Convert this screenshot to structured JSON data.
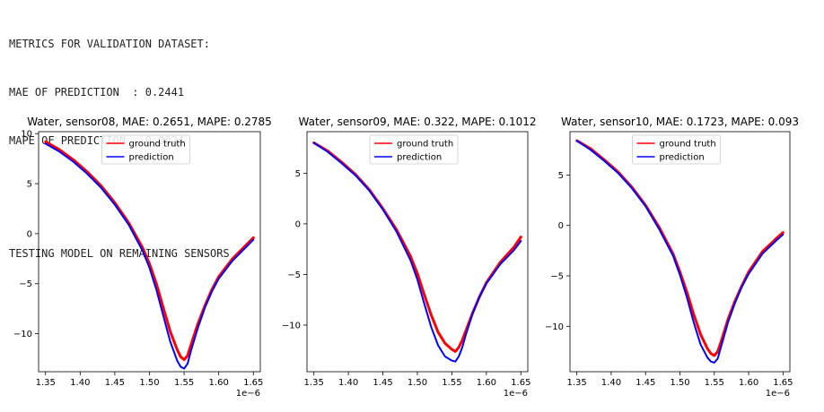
{
  "console": {
    "metrics_header": "METRICS FOR VALIDATION DATASET:",
    "mae_line": "MAE OF PREDICTION  : 0.2441",
    "mape_line": "MAPE OF PREDICTION : 0.0924",
    "testing_line": "TESTING MODEL ON REMAINING SENSORS"
  },
  "chart_data": [
    {
      "type": "line",
      "title": "Water, sensor08, MAE: 0.2651, MAPE: 0.2785",
      "xlabel": "",
      "ylabel": "",
      "x_offset_label": "1e−6",
      "xlim": [
        1.34,
        1.66
      ],
      "ylim": [
        -13.8,
        10.2
      ],
      "xticks": [
        1.35,
        1.4,
        1.45,
        1.5,
        1.55,
        1.6,
        1.65
      ],
      "xtick_labels": [
        "1.35",
        "1.40",
        "1.45",
        "1.50",
        "1.55",
        "1.60",
        "1.65"
      ],
      "yticks": [
        -10,
        -5,
        0,
        5,
        10
      ],
      "ytick_labels": [
        "−10",
        "−5",
        "0",
        "5",
        "10"
      ],
      "legend": "top-center",
      "series": [
        {
          "name": "ground truth",
          "color": "#ff0000",
          "x": [
            1.35,
            1.37,
            1.39,
            1.41,
            1.43,
            1.45,
            1.47,
            1.49,
            1.5,
            1.51,
            1.52,
            1.53,
            1.54,
            1.545,
            1.55,
            1.555,
            1.56,
            1.57,
            1.58,
            1.59,
            1.6,
            1.62,
            1.64,
            1.65
          ],
          "y": [
            9.2,
            8.4,
            7.4,
            6.2,
            4.8,
            3.1,
            1.1,
            -1.4,
            -3.0,
            -5.0,
            -7.4,
            -9.8,
            -11.6,
            -12.3,
            -12.6,
            -12.2,
            -11.1,
            -9.0,
            -7.2,
            -5.6,
            -4.3,
            -2.5,
            -1.1,
            -0.4
          ]
        },
        {
          "name": "prediction",
          "color": "#0000ff",
          "x": [
            1.35,
            1.37,
            1.39,
            1.41,
            1.43,
            1.45,
            1.47,
            1.49,
            1.5,
            1.51,
            1.52,
            1.53,
            1.54,
            1.545,
            1.55,
            1.555,
            1.56,
            1.57,
            1.58,
            1.59,
            1.6,
            1.62,
            1.64,
            1.65
          ],
          "y": [
            9.0,
            8.2,
            7.2,
            6.0,
            4.6,
            2.9,
            0.9,
            -1.7,
            -3.4,
            -5.6,
            -8.2,
            -10.8,
            -12.7,
            -13.3,
            -13.5,
            -13.0,
            -11.7,
            -9.4,
            -7.4,
            -5.8,
            -4.5,
            -2.7,
            -1.3,
            -0.6
          ]
        }
      ]
    },
    {
      "type": "line",
      "title": "Water, sensor09, MAE: 0.322, MAPE: 0.1012",
      "xlabel": "",
      "ylabel": "",
      "x_offset_label": "1e−6",
      "xlim": [
        1.34,
        1.66
      ],
      "ylim": [
        -14.6,
        9.1
      ],
      "xticks": [
        1.35,
        1.4,
        1.45,
        1.5,
        1.55,
        1.6,
        1.65
      ],
      "xtick_labels": [
        "1.35",
        "1.40",
        "1.45",
        "1.50",
        "1.55",
        "1.60",
        "1.65"
      ],
      "yticks": [
        -10,
        -5,
        0,
        5
      ],
      "ytick_labels": [
        "−10",
        "−5",
        "0",
        "5"
      ],
      "legend": "top-center",
      "series": [
        {
          "name": "ground truth",
          "color": "#ff0000",
          "x": [
            1.35,
            1.37,
            1.39,
            1.41,
            1.43,
            1.45,
            1.47,
            1.49,
            1.5,
            1.51,
            1.52,
            1.53,
            1.54,
            1.55,
            1.555,
            1.56,
            1.565,
            1.57,
            1.58,
            1.59,
            1.6,
            1.62,
            1.64,
            1.65
          ],
          "y": [
            8.0,
            7.2,
            6.1,
            4.9,
            3.4,
            1.5,
            -0.6,
            -3.2,
            -4.9,
            -7.0,
            -9.0,
            -10.7,
            -11.8,
            -12.4,
            -12.6,
            -12.2,
            -11.5,
            -10.6,
            -8.8,
            -7.2,
            -5.8,
            -3.8,
            -2.3,
            -1.3
          ]
        },
        {
          "name": "prediction",
          "color": "#0000ff",
          "x": [
            1.35,
            1.37,
            1.39,
            1.41,
            1.43,
            1.45,
            1.47,
            1.49,
            1.5,
            1.51,
            1.52,
            1.53,
            1.54,
            1.55,
            1.555,
            1.56,
            1.565,
            1.57,
            1.58,
            1.59,
            1.6,
            1.62,
            1.64,
            1.65
          ],
          "y": [
            8.0,
            7.1,
            6.0,
            4.8,
            3.3,
            1.4,
            -0.8,
            -3.6,
            -5.5,
            -7.9,
            -10.2,
            -12.0,
            -13.1,
            -13.5,
            -13.6,
            -13.1,
            -12.2,
            -11.0,
            -8.9,
            -7.2,
            -5.9,
            -4.0,
            -2.6,
            -1.7
          ]
        }
      ]
    },
    {
      "type": "line",
      "title": "Water, sensor10, MAE: 0.1723, MAPE: 0.093",
      "xlabel": "",
      "ylabel": "",
      "x_offset_label": "1e−6",
      "xlim": [
        1.34,
        1.66
      ],
      "ylim": [
        -14.5,
        9.3
      ],
      "xticks": [
        1.35,
        1.4,
        1.45,
        1.5,
        1.55,
        1.6,
        1.65
      ],
      "xtick_labels": [
        "1.35",
        "1.40",
        "1.45",
        "1.50",
        "1.55",
        "1.60",
        "1.65"
      ],
      "yticks": [
        -10,
        -5,
        0,
        5
      ],
      "ytick_labels": [
        "−10",
        "−5",
        "0",
        "5"
      ],
      "legend": "top-center",
      "series": [
        {
          "name": "ground truth",
          "color": "#ff0000",
          "x": [
            1.35,
            1.37,
            1.39,
            1.41,
            1.43,
            1.45,
            1.47,
            1.49,
            1.5,
            1.51,
            1.52,
            1.53,
            1.54,
            1.545,
            1.55,
            1.555,
            1.56,
            1.57,
            1.58,
            1.59,
            1.6,
            1.62,
            1.64,
            1.65
          ],
          "y": [
            8.4,
            7.6,
            6.5,
            5.3,
            3.8,
            2.0,
            -0.2,
            -2.8,
            -4.6,
            -6.6,
            -8.8,
            -10.8,
            -12.2,
            -12.7,
            -12.9,
            -12.5,
            -11.5,
            -9.3,
            -7.5,
            -6.0,
            -4.6,
            -2.6,
            -1.3,
            -0.7
          ]
        },
        {
          "name": "prediction",
          "color": "#0000ff",
          "x": [
            1.35,
            1.37,
            1.39,
            1.41,
            1.43,
            1.45,
            1.47,
            1.49,
            1.5,
            1.51,
            1.52,
            1.53,
            1.54,
            1.545,
            1.55,
            1.555,
            1.56,
            1.57,
            1.58,
            1.59,
            1.6,
            1.62,
            1.64,
            1.65
          ],
          "y": [
            8.4,
            7.5,
            6.4,
            5.2,
            3.7,
            1.9,
            -0.4,
            -3.0,
            -4.9,
            -7.1,
            -9.6,
            -11.8,
            -13.1,
            -13.5,
            -13.6,
            -13.2,
            -12.0,
            -9.6,
            -7.7,
            -6.1,
            -4.8,
            -2.8,
            -1.5,
            -0.9
          ]
        }
      ]
    }
  ]
}
